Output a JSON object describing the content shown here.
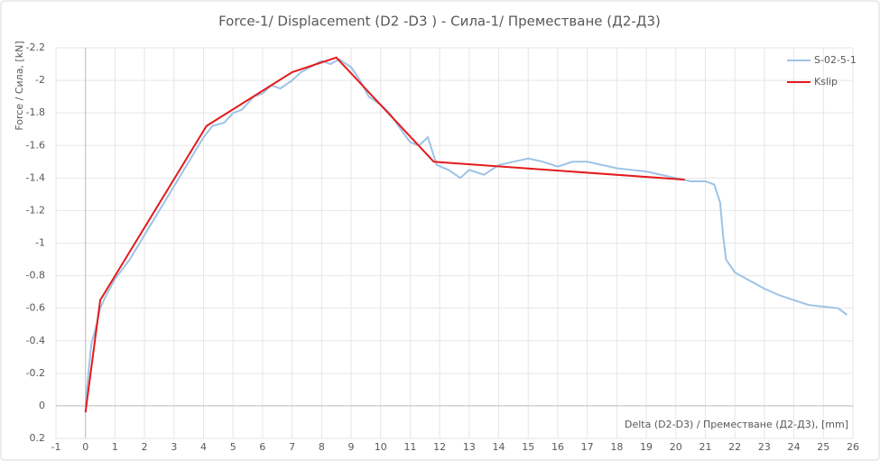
{
  "chart_data": {
    "type": "line",
    "title": "Force-1/ Displacement (D2 -D3 ) - Сила-1/ Преместване (Д2-Д3)",
    "xlabel": "Delta (D2-D3) / Преместване (Д2-Д3), [mm]",
    "ylabel": "Force / Сила, [kN]",
    "xlim": [
      -1,
      26
    ],
    "xticks": [
      -1,
      0,
      1,
      2,
      3,
      4,
      5,
      6,
      7,
      8,
      9,
      10,
      11,
      12,
      13,
      14,
      15,
      16,
      17,
      18,
      19,
      20,
      21,
      22,
      23,
      24,
      25,
      26
    ],
    "ylim": [
      0.2,
      -2.2
    ],
    "yticks": [
      -2.2,
      -2,
      -1.8,
      -1.6,
      -1.4,
      -1.2,
      -1,
      -0.8,
      -0.6,
      -0.4,
      -0.2,
      0,
      0.2
    ],
    "grid": true,
    "legend": "top-right",
    "series": [
      {
        "name": "S-02-5-1",
        "color": "#9dc3e6",
        "x": [
          0,
          0.1,
          0.2,
          0.35,
          0.5,
          0.7,
          1,
          1.5,
          2,
          2.5,
          3,
          3.5,
          4,
          4.3,
          4.7,
          5,
          5.3,
          5.7,
          6,
          6.3,
          6.6,
          7,
          7.3,
          7.6,
          8,
          8.3,
          8.6,
          9,
          9.3,
          9.6,
          10,
          10.3,
          10.6,
          11,
          11.3,
          11.6,
          11.9,
          12.3,
          12.7,
          13,
          13.5,
          14,
          14.5,
          15,
          15.5,
          16,
          16.5,
          17,
          17.5,
          18,
          18.5,
          19,
          19.5,
          20,
          20.5,
          21,
          21.3,
          21.5,
          21.6,
          21.7,
          22,
          22.5,
          23,
          23.5,
          24,
          24.5,
          25,
          25.5,
          25.8
        ],
        "values": [
          0,
          -0.2,
          -0.38,
          -0.48,
          -0.6,
          -0.68,
          -0.78,
          -0.9,
          -1.05,
          -1.2,
          -1.35,
          -1.5,
          -1.65,
          -1.72,
          -1.74,
          -1.8,
          -1.82,
          -1.9,
          -1.92,
          -1.97,
          -1.95,
          -2.0,
          -2.05,
          -2.08,
          -2.12,
          -2.1,
          -2.13,
          -2.08,
          -2.0,
          -1.9,
          -1.85,
          -1.8,
          -1.72,
          -1.62,
          -1.6,
          -1.65,
          -1.48,
          -1.45,
          -1.4,
          -1.45,
          -1.42,
          -1.48,
          -1.5,
          -1.52,
          -1.5,
          -1.47,
          -1.5,
          -1.5,
          -1.48,
          -1.46,
          -1.45,
          -1.44,
          -1.42,
          -1.4,
          -1.38,
          -1.38,
          -1.36,
          -1.25,
          -1.05,
          -0.9,
          -0.82,
          -0.77,
          -0.72,
          -0.68,
          -0.65,
          -0.62,
          -0.61,
          -0.6,
          -0.56
        ]
      },
      {
        "name": "Kslip",
        "color": "#e41a1c",
        "x": [
          0,
          0.5,
          4.1,
          7,
          8.5,
          11.8,
          20.3
        ],
        "values": [
          0.04,
          -0.65,
          -1.72,
          -2.05,
          -2.14,
          -1.5,
          -1.39
        ]
      }
    ]
  }
}
